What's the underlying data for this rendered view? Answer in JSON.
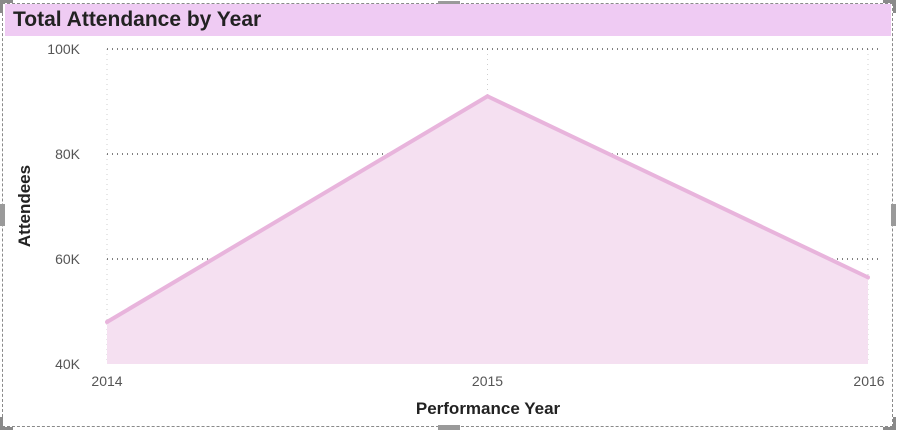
{
  "chart_data": {
    "type": "area",
    "title": "Total Attendance by Year",
    "xlabel": "Performance Year",
    "ylabel": "Attendees",
    "categories": [
      "2014",
      "2015",
      "2016"
    ],
    "series": [
      {
        "values": [
          48000,
          91000,
          56500
        ]
      }
    ],
    "ylim": [
      40000,
      100000
    ],
    "y_ticks": [
      {
        "value": 40000,
        "label": "40K"
      },
      {
        "value": 60000,
        "label": "60K"
      },
      {
        "value": 80000,
        "label": "80K"
      },
      {
        "value": 100000,
        "label": "100K"
      }
    ],
    "grid": true,
    "colors": {
      "line": "#e8b4dc",
      "fill": "#f5e0f1",
      "title_bar": "#efcbf3",
      "grid": "#333333"
    }
  }
}
